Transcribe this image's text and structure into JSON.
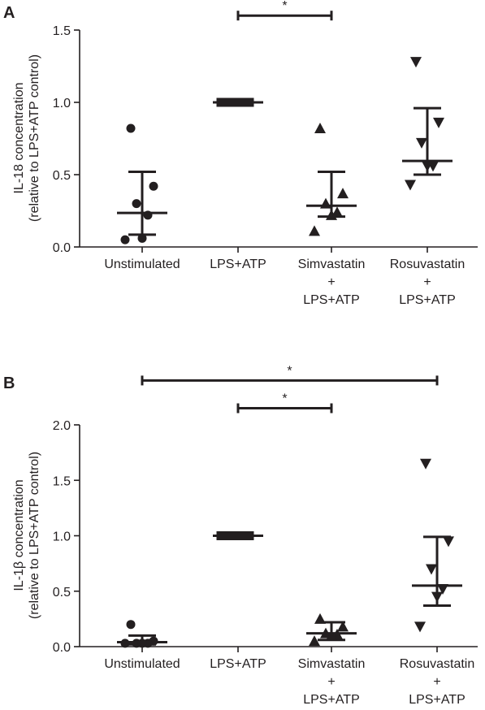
{
  "chart_data": [
    {
      "type": "scatter",
      "panel_label": "A",
      "ylabel": [
        "IL-18 concentration",
        "(relative to LPS+ATP control)"
      ],
      "ylim": [
        0,
        1.5
      ],
      "yticks": [
        0.0,
        0.5,
        1.0,
        1.5
      ],
      "ytick_labels": [
        "0.0",
        "0.5",
        "1.0",
        "1.5"
      ],
      "categories": [
        {
          "lines": [
            "Unstimulated"
          ],
          "marker": "circle",
          "points": [
            0.82,
            0.42,
            0.3,
            0.22,
            0.06,
            0.05
          ],
          "mean": 0.235,
          "err_low": 0.085,
          "err_high": 0.52
        },
        {
          "lines": [
            "LPS+ATP"
          ],
          "marker": "square",
          "points": [
            1.0,
            1.0,
            1.0,
            1.0,
            1.0,
            1.0
          ],
          "mean": 1.0,
          "err_low": 1.0,
          "err_high": 1.0
        },
        {
          "lines": [
            "Simvastatin",
            "+",
            "LPS+ATP"
          ],
          "marker": "triangle-up",
          "points": [
            0.82,
            0.37,
            0.3,
            0.24,
            0.22,
            0.11
          ],
          "mean": 0.285,
          "err_low": 0.21,
          "err_high": 0.52
        },
        {
          "lines": [
            "Rosuvastatin",
            "+",
            "LPS+ATP"
          ],
          "marker": "triangle-down",
          "points": [
            1.28,
            0.86,
            0.72,
            0.56,
            0.56,
            0.43
          ],
          "mean": 0.595,
          "err_low": 0.5,
          "err_high": 0.96
        }
      ],
      "significance": [
        {
          "from": 1,
          "to": 2,
          "label": "*",
          "y": 1.6
        }
      ]
    },
    {
      "type": "scatter",
      "panel_label": "B",
      "ylabel": [
        "IL-1β concentration",
        "(relative to LPS+ATP control)"
      ],
      "ylim": [
        0,
        2.0
      ],
      "yticks": [
        0.0,
        0.5,
        1.0,
        1.5,
        2.0
      ],
      "ytick_labels": [
        "0.0",
        "0.5",
        "1.0",
        "1.5",
        "2.0"
      ],
      "categories": [
        {
          "lines": [
            "Unstimulated"
          ],
          "marker": "circle",
          "points": [
            0.2,
            0.05,
            0.03,
            0.03,
            0.03,
            0.03
          ],
          "mean": 0.04,
          "err_low": 0.02,
          "err_high": 0.1
        },
        {
          "lines": [
            "LPS+ATP"
          ],
          "marker": "square",
          "points": [
            1.0,
            1.0,
            1.0,
            1.0,
            1.0,
            1.0
          ],
          "mean": 1.0,
          "err_low": 1.0,
          "err_high": 1.0
        },
        {
          "lines": [
            "Simvastatin",
            "+",
            "LPS+ATP"
          ],
          "marker": "triangle-up",
          "points": [
            0.25,
            0.18,
            0.12,
            0.11,
            0.1,
            0.05
          ],
          "mean": 0.12,
          "err_low": 0.06,
          "err_high": 0.22
        },
        {
          "lines": [
            "Rosuvastatin",
            "+",
            "LPS+ATP"
          ],
          "marker": "triangle-down",
          "points": [
            1.65,
            0.95,
            0.7,
            0.52,
            0.45,
            0.18
          ],
          "mean": 0.55,
          "err_low": 0.37,
          "err_high": 0.99
        }
      ],
      "significance": [
        {
          "from": 0,
          "to": 3,
          "label": "*",
          "y": 2.4
        },
        {
          "from": 1,
          "to": 2,
          "label": "*",
          "y": 2.15
        }
      ]
    }
  ]
}
